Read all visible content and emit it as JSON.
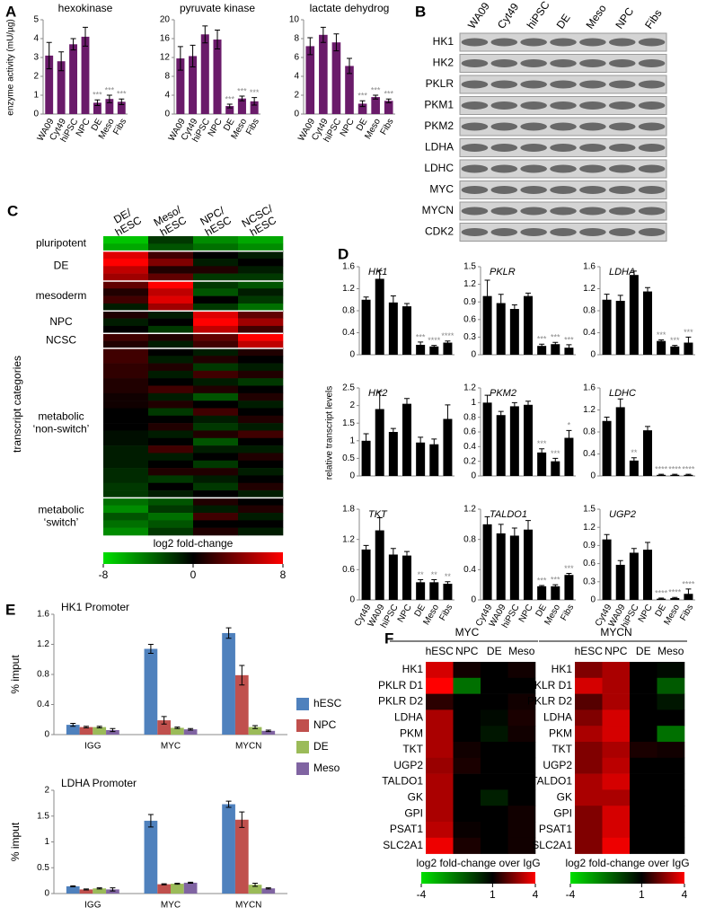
{
  "chart_data": [
    {
      "type": "bar",
      "panel": "A",
      "title": "hexokinase",
      "ylabel": "enzyme activity (mU/µg)",
      "color": "#6a1b6a",
      "categories": [
        "WA09",
        "Cyt49",
        "hiPSC",
        "NPC",
        "DE",
        "Meso",
        "Fibs"
      ],
      "values": [
        3.1,
        2.8,
        3.7,
        4.1,
        0.6,
        0.8,
        0.65
      ],
      "errors": [
        0.7,
        0.5,
        0.3,
        0.5,
        0.15,
        0.2,
        0.15
      ],
      "significance": [
        null,
        null,
        null,
        null,
        "***",
        "***",
        "***"
      ],
      "ylim": [
        0,
        5
      ],
      "yticks": [
        0,
        1,
        2,
        3,
        4,
        5
      ]
    },
    {
      "type": "bar",
      "title": "pyruvate kinase",
      "color": "#6a1b6a",
      "categories": [
        "WA09",
        "Cyt49",
        "hiPSC",
        "NPC",
        "DE",
        "Meso",
        "Fibs"
      ],
      "values": [
        11.8,
        12.3,
        16.9,
        15.8,
        1.7,
        3.3,
        2.7
      ],
      "errors": [
        2.5,
        2.3,
        1.8,
        2.0,
        0.4,
        0.5,
        0.8
      ],
      "significance": [
        null,
        null,
        null,
        null,
        "***",
        "***",
        "***"
      ],
      "ylim": [
        0,
        20
      ],
      "yticks": [
        0,
        4,
        8,
        12,
        16,
        20
      ]
    },
    {
      "type": "bar",
      "title": "lactate dehydrog",
      "color": "#6a1b6a",
      "categories": [
        "WA09",
        "Cyt49",
        "hiPSC",
        "NPC",
        "DE",
        "Meso",
        "Fibs"
      ],
      "values": [
        7.2,
        8.4,
        7.6,
        5.1,
        1.1,
        1.8,
        1.4
      ],
      "errors": [
        0.9,
        0.8,
        0.9,
        0.8,
        0.3,
        0.2,
        0.2
      ],
      "significance": [
        null,
        null,
        null,
        null,
        "***",
        "***",
        "***"
      ],
      "ylim": [
        0,
        10
      ],
      "yticks": [
        0,
        2,
        4,
        6,
        8,
        10
      ]
    },
    {
      "type": "blot",
      "panel": "B",
      "lanes": [
        "WA09",
        "Cyt49",
        "hiPSC",
        "DE",
        "Meso",
        "NPC",
        "Fibs"
      ],
      "proteins": [
        "HK1",
        "HK2",
        "PKLR",
        "PKM1",
        "PKM2",
        "LDHA",
        "LDHC",
        "MYC",
        "MYCN",
        "CDK2"
      ]
    },
    {
      "type": "heatmap_groups",
      "panel": "C",
      "ylabel": "transcript categories",
      "columns": [
        [
          "DE/",
          "hESC"
        ],
        [
          "Meso/",
          "hESC"
        ],
        [
          "NPC/",
          "hESC"
        ],
        [
          "NCSC/",
          "hESC"
        ]
      ],
      "colorbar_label": "log2 fold-change",
      "cticks": [
        -8,
        0,
        8
      ],
      "colormap": [
        "#00e000",
        "#000000",
        "#ff0000"
      ],
      "row_groups": [
        {
          "name": "pluripotent",
          "values": [
            [
              -7,
              -2,
              -5,
              -6
            ],
            [
              -6,
              -3,
              -4,
              -5
            ]
          ]
        },
        {
          "name": "DE",
          "values": [
            [
              7,
              2,
              0,
              -1
            ],
            [
              8,
              4,
              -1,
              0
            ],
            [
              6,
              1,
              1,
              -1
            ],
            [
              5,
              3,
              -2,
              -2
            ]
          ]
        },
        {
          "name": "mesoderm",
          "values": [
            [
              3,
              8,
              -2,
              -3
            ],
            [
              1,
              6,
              -3,
              -1
            ],
            [
              2,
              7,
              0,
              -2
            ],
            [
              -1,
              5,
              -2,
              -4
            ]
          ]
        },
        {
          "name": "NPC",
          "values": [
            [
              1,
              -1,
              7,
              3
            ],
            [
              -1,
              0,
              8,
              5
            ],
            [
              0,
              -2,
              6,
              2
            ]
          ]
        },
        {
          "name": "NCSC",
          "values": [
            [
              2,
              1,
              3,
              8
            ],
            [
              1,
              -1,
              2,
              6
            ]
          ]
        },
        {
          "name": [
            "metabolic",
            "‘non-switch’"
          ],
          "values": [
            [
              2,
              0,
              -1,
              1
            ],
            [
              2,
              -1,
              1,
              0
            ],
            [
              1.5,
              1,
              -2,
              -1
            ],
            [
              1.5,
              -1,
              2,
              1
            ],
            [
              1,
              0,
              -1,
              -2
            ],
            [
              1,
              2,
              1,
              0
            ],
            [
              0.5,
              -1,
              -3,
              1
            ],
            [
              0.5,
              1,
              0,
              -1
            ],
            [
              0,
              -2,
              2,
              0
            ],
            [
              0,
              0,
              -1,
              1
            ],
            [
              0,
              1,
              -2,
              -1
            ],
            [
              -0.5,
              -1,
              1,
              2
            ],
            [
              -0.5,
              0,
              -3,
              0
            ],
            [
              -1,
              2,
              -1,
              -1
            ],
            [
              -1,
              -1,
              0,
              1
            ],
            [
              -1,
              0,
              -2,
              0
            ],
            [
              -1.5,
              1,
              1,
              -1
            ],
            [
              -1.5,
              -2,
              -1,
              0
            ],
            [
              -2,
              0,
              -2,
              1
            ],
            [
              -2,
              -1,
              0,
              -1
            ]
          ]
        },
        {
          "name": [
            "metabolic",
            "‘switch’"
          ],
          "values": [
            [
              -4,
              -3,
              1,
              0
            ],
            [
              -5,
              -2,
              -1,
              1
            ],
            [
              -3,
              -4,
              2,
              -1
            ],
            [
              -4,
              -3,
              0,
              0
            ],
            [
              -5,
              -2,
              1,
              -1
            ]
          ]
        }
      ]
    },
    {
      "type": "bar",
      "panel": "D",
      "title": "HK1",
      "color": "#000000",
      "values": [
        1.0,
        1.38,
        0.95,
        0.88,
        0.18,
        0.15,
        0.22
      ],
      "errors": [
        0.05,
        0.15,
        0.12,
        0.05,
        0.05,
        0.02,
        0.03
      ],
      "significance": [
        null,
        null,
        null,
        null,
        "***",
        "****",
        "****"
      ],
      "ylim": [
        0,
        1.6
      ],
      "yticks": [
        0,
        0.4,
        0.8,
        1.2,
        1.6
      ]
    },
    {
      "type": "bar",
      "title": "PKLR",
      "color": "#000000",
      "values": [
        1.0,
        0.88,
        0.78,
        1.0,
        0.15,
        0.18,
        0.12
      ],
      "errors": [
        0.27,
        0.15,
        0.07,
        0.05,
        0.03,
        0.03,
        0.05
      ],
      "significance": [
        null,
        null,
        null,
        null,
        "***",
        "***",
        "***"
      ],
      "ylim": [
        0,
        1.5
      ],
      "yticks": [
        0,
        0.3,
        0.6,
        0.9,
        1.2,
        1.5
      ]
    },
    {
      "type": "bar",
      "title": "LDHA",
      "color": "#000000",
      "values": [
        1.0,
        0.98,
        1.45,
        1.15,
        0.25,
        0.15,
        0.22
      ],
      "errors": [
        0.1,
        0.1,
        0.07,
        0.07,
        0.02,
        0.02,
        0.1
      ],
      "significance": [
        null,
        null,
        null,
        null,
        "***",
        "***",
        "***"
      ],
      "ylim": [
        0,
        1.6
      ],
      "yticks": [
        0,
        0.4,
        0.8,
        1.2,
        1.6
      ]
    },
    {
      "type": "bar",
      "title": "HK2",
      "ylabel": "relative transcript levels",
      "color": "#000000",
      "values": [
        1.0,
        1.9,
        1.25,
        2.05,
        0.95,
        0.9,
        1.62
      ],
      "errors": [
        0.2,
        0.5,
        0.1,
        0.15,
        0.15,
        0.15,
        0.4
      ],
      "ylim": [
        0,
        2.5
      ],
      "yticks": [
        0,
        0.5,
        1,
        1.5,
        2,
        2.5
      ]
    },
    {
      "type": "bar",
      "title": "PKM2",
      "color": "#000000",
      "values": [
        1.0,
        0.83,
        0.95,
        0.97,
        0.32,
        0.2,
        0.52
      ],
      "errors": [
        0.1,
        0.05,
        0.05,
        0.05,
        0.05,
        0.04,
        0.1
      ],
      "significance": [
        null,
        null,
        null,
        null,
        "***",
        "***",
        "*"
      ],
      "ylim": [
        0,
        1.2
      ],
      "yticks": [
        0,
        0.2,
        0.4,
        0.6,
        0.8,
        1,
        1.2
      ]
    },
    {
      "type": "bar",
      "title": "LDHC",
      "color": "#000000",
      "values": [
        1.0,
        1.25,
        0.28,
        0.83,
        0.02,
        0.02,
        0.02
      ],
      "errors": [
        0.07,
        0.15,
        0.05,
        0.07,
        0.01,
        0.01,
        0.01
      ],
      "significance": [
        null,
        null,
        "**",
        null,
        "****",
        "****",
        "****"
      ],
      "ylim": [
        0,
        1.6
      ],
      "yticks": [
        0,
        0.4,
        0.8,
        1.2,
        1.6
      ]
    },
    {
      "type": "bar",
      "title": "TKT",
      "color": "#000000",
      "categories": [
        "Cyt49",
        "WA09",
        "hiPSC",
        "NPC",
        "DE",
        "Meso",
        "Fibs"
      ],
      "values": [
        1.0,
        1.38,
        0.9,
        0.88,
        0.35,
        0.35,
        0.32
      ],
      "errors": [
        0.08,
        0.25,
        0.12,
        0.08,
        0.05,
        0.05,
        0.04
      ],
      "significance": [
        null,
        null,
        null,
        null,
        "**",
        "**",
        "**"
      ],
      "ylim": [
        0,
        1.8
      ],
      "yticks": [
        0,
        0.6,
        1.2,
        1.8
      ]
    },
    {
      "type": "bar",
      "title": "TALDO1",
      "color": "#000000",
      "categories": [
        "Cyt49",
        "WA09",
        "hiPSC",
        "NPC",
        "DE",
        "Meso",
        "Fibs"
      ],
      "values": [
        1.0,
        0.88,
        0.85,
        0.93,
        0.18,
        0.18,
        0.33
      ],
      "errors": [
        0.1,
        0.12,
        0.1,
        0.12,
        0.01,
        0.02,
        0.02
      ],
      "significance": [
        null,
        null,
        null,
        null,
        "***",
        "***",
        "***"
      ],
      "ylim": [
        0,
        1.2
      ],
      "yticks": [
        0,
        0.4,
        0.8,
        1.2
      ]
    },
    {
      "type": "bar",
      "title": "UGP2",
      "color": "#000000",
      "categories": [
        "Cyt49",
        "WA09",
        "hiPSC",
        "NPC",
        "DE",
        "Meso",
        "Fibs"
      ],
      "values": [
        1.0,
        0.58,
        0.78,
        0.83,
        0.02,
        0.03,
        0.1
      ],
      "errors": [
        0.08,
        0.07,
        0.07,
        0.12,
        0.01,
        0.01,
        0.08
      ],
      "significance": [
        null,
        null,
        null,
        null,
        "****",
        "****",
        "****"
      ],
      "ylim": [
        0,
        1.5
      ],
      "yticks": [
        0,
        0.3,
        0.6,
        0.9,
        1.2,
        1.5
      ]
    },
    {
      "type": "grouped_bar",
      "panel": "E",
      "title": "HK1 Promoter",
      "ylabel": "% imput",
      "categories": [
        "IGG",
        "MYC",
        "MYCN"
      ],
      "series": [
        {
          "name": "hESC",
          "color": "#4f81bd",
          "values": [
            0.13,
            1.14,
            1.35
          ],
          "errors": [
            0.02,
            0.06,
            0.07
          ]
        },
        {
          "name": "NPC",
          "color": "#c0504d",
          "values": [
            0.1,
            0.19,
            0.79
          ],
          "errors": [
            0.01,
            0.05,
            0.13
          ]
        },
        {
          "name": "DE",
          "color": "#9bbb59",
          "values": [
            0.1,
            0.09,
            0.1
          ],
          "errors": [
            0.01,
            0.01,
            0.02
          ]
        },
        {
          "name": "Meso",
          "color": "#8064a2",
          "values": [
            0.06,
            0.07,
            0.05
          ],
          "errors": [
            0.02,
            0.01,
            0.01
          ]
        }
      ],
      "ylim": [
        0,
        1.6
      ],
      "yticks": [
        0,
        0.4,
        0.8,
        1.2,
        1.6
      ]
    },
    {
      "type": "grouped_bar",
      "title": "LDHA Promoter",
      "ylabel": "% imput",
      "categories": [
        "IGG",
        "MYC",
        "MYCN"
      ],
      "series": [
        {
          "color": "#4f81bd",
          "values": [
            0.14,
            1.41,
            1.73
          ],
          "errors": [
            0.01,
            0.12,
            0.06
          ]
        },
        {
          "color": "#c0504d",
          "values": [
            0.08,
            0.18,
            1.43
          ],
          "errors": [
            0.01,
            0.01,
            0.15
          ]
        },
        {
          "color": "#9bbb59",
          "values": [
            0.1,
            0.19,
            0.17
          ],
          "errors": [
            0.01,
            0.01,
            0.03
          ]
        },
        {
          "color": "#8064a2",
          "values": [
            0.08,
            0.21,
            0.1
          ],
          "errors": [
            0.03,
            0.01,
            0.01
          ]
        }
      ],
      "ylim": [
        0,
        2
      ],
      "yticks": [
        0,
        0.5,
        1,
        1.5,
        2
      ]
    },
    {
      "type": "heatmap",
      "panel": "F",
      "title": "MYC",
      "columns": [
        "hESC",
        "NPC",
        "DE",
        "Meso"
      ],
      "rows": [
        "HK1",
        "PKLR D1",
        "PKLR D2",
        "LDHA",
        "PKM",
        "TKT",
        "UGP2",
        "TALDO1",
        "GK",
        "GPI",
        "PSAT1",
        "SLC2A1"
      ],
      "values": [
        [
          3.5,
          1.2,
          1,
          1.2
        ],
        [
          4,
          -1.5,
          1,
          1
        ],
        [
          1.5,
          1,
          1,
          1.2
        ],
        [
          3,
          1,
          0.8,
          1.3
        ],
        [
          3,
          1,
          0.5,
          1.2
        ],
        [
          3,
          1.2,
          1,
          1
        ],
        [
          2.8,
          1.3,
          1,
          1
        ],
        [
          3,
          1,
          1,
          1
        ],
        [
          3,
          1,
          0.3,
          1
        ],
        [
          3,
          1,
          1,
          1.2
        ],
        [
          3.2,
          1.1,
          1,
          1.2
        ],
        [
          3.8,
          1.3,
          1,
          1.2
        ]
      ],
      "colorbar_label": "log2 fold-change over IgG",
      "cticks": [
        -4,
        1,
        4
      ],
      "colormap": [
        "#00e000",
        "#000000",
        "#ff0000"
      ]
    },
    {
      "type": "heatmap",
      "title": "MYCN",
      "columns": [
        "hESC",
        "NPC",
        "DE",
        "Meso"
      ],
      "rows": [
        "HK1",
        "PKLR D1",
        "PKLR D2",
        "LDHA",
        "PKM",
        "TKT",
        "UGP2",
        "TALDO1",
        "GK",
        "GPI",
        "PSAT1",
        "SLC2A1"
      ],
      "values": [
        [
          2.5,
          3,
          1,
          0.8
        ],
        [
          3.5,
          3,
          1,
          -1
        ],
        [
          2,
          3,
          1,
          0.5
        ],
        [
          2.5,
          3.5,
          1,
          1
        ],
        [
          3,
          3.5,
          1,
          -1.5
        ],
        [
          2.5,
          3,
          1.3,
          1.2
        ],
        [
          2.5,
          3.2,
          1,
          1
        ],
        [
          3,
          3.5,
          1,
          1
        ],
        [
          3,
          3,
          1,
          1
        ],
        [
          2.5,
          3.5,
          1,
          1
        ],
        [
          2.5,
          3.5,
          1,
          1
        ],
        [
          2.5,
          3.8,
          1,
          1
        ]
      ],
      "colorbar_label": "log2 fold-change over IgG",
      "cticks": [
        -4,
        1,
        4
      ],
      "colormap": [
        "#00e000",
        "#000000",
        "#ff0000"
      ]
    }
  ]
}
